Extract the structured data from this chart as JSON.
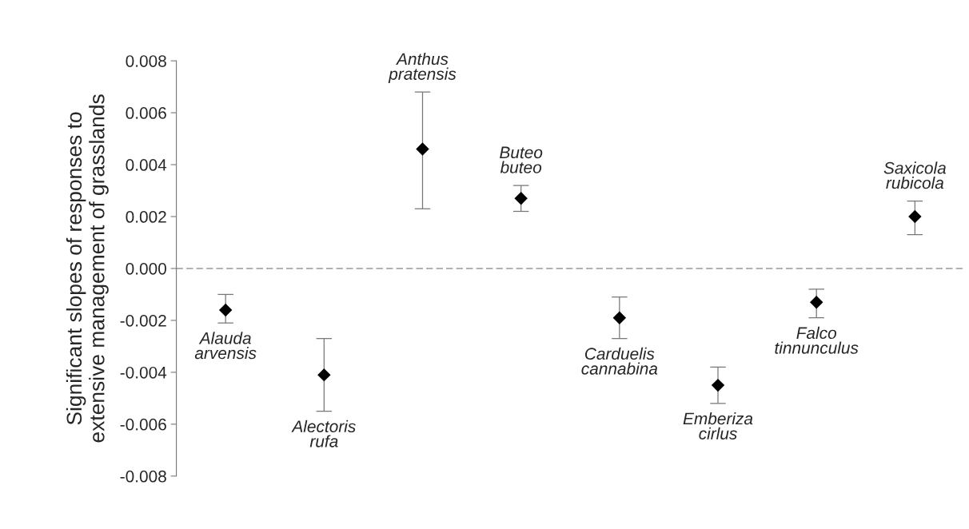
{
  "chart_data": {
    "type": "scatter",
    "ylabel": "Significant slopes of responses to\nextensive management of grasslands",
    "categories": [
      null,
      null,
      null,
      null,
      null,
      null,
      null,
      null
    ],
    "annotations": [
      "Alauda\narvensis",
      "Alectoris\nrufa",
      "Anthus\npratensis",
      "Buteo\nbuteo",
      "Carduelis\ncannabina",
      "Emberiza\ncirlus",
      "Falco\ntinnunculus",
      "Saxicola\nrubicola"
    ],
    "series": [
      {
        "color": "#000000",
        "values": [
          -0.0016,
          -0.0041,
          0.0046,
          0.0027,
          -0.0019,
          -0.0045,
          -0.0013,
          0.002
        ],
        "errors": [
          [
            -0.0021,
            -0.001
          ],
          [
            -0.0055,
            -0.0027
          ],
          [
            0.0023,
            0.0068
          ],
          [
            0.0022,
            0.0032
          ],
          [
            -0.0027,
            -0.0011
          ],
          [
            -0.0052,
            -0.0038
          ],
          [
            -0.0019,
            -0.0008
          ],
          [
            0.0013,
            0.0026
          ]
        ]
      }
    ],
    "marker": "diamond",
    "ylim": [
      -0.008,
      0.008
    ],
    "yticks": [
      {
        "value": 0.008,
        "label": "0.008"
      },
      {
        "value": 0.006,
        "label": "0.006"
      },
      {
        "value": 0.004,
        "label": "0.004"
      },
      {
        "value": 0.002,
        "label": "0.002"
      },
      {
        "value": 0,
        "label": "0.000"
      },
      {
        "value": -0.002,
        "label": "-0.002"
      },
      {
        "value": -0.004,
        "label": "-0.004"
      },
      {
        "value": -0.006,
        "label": "-0.006"
      },
      {
        "value": -0.008,
        "label": "-0.008"
      }
    ],
    "ref_lines": [
      {
        "axis": "y",
        "value": 0,
        "color": "#999999",
        "line_style": "dashed"
      }
    ],
    "tick_labels": "y",
    "grid": false,
    "legend": false
  }
}
